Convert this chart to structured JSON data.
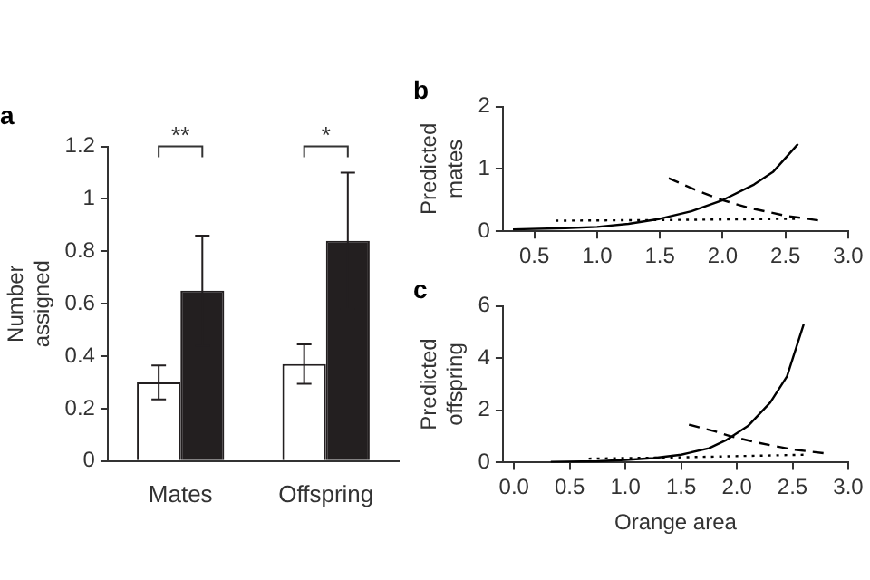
{
  "chart_data": [
    {
      "type": "bar",
      "title": "a",
      "ylabel": "Number assigned",
      "categories": [
        "Mates",
        "Offspring"
      ],
      "series": [
        {
          "color": "#ffffff",
          "values": [
            0.3,
            0.37
          ],
          "errors": [
            0.065,
            0.075
          ]
        },
        {
          "color": "#231f20",
          "values": [
            0.65,
            0.84
          ],
          "errors": [
            0.21,
            0.26
          ]
        }
      ],
      "ylim": [
        0,
        1.2
      ],
      "yticks": [
        0,
        0.2,
        0.4,
        0.6,
        0.8,
        1,
        1.2
      ],
      "grid": false,
      "legend": false,
      "annotations": [
        "**",
        "*"
      ]
    },
    {
      "type": "line",
      "title": "b",
      "ylabel": "Predicted mates",
      "marker": "none",
      "series": [
        {
          "color": "#000000",
          "line_style": "solid",
          "x": [
            0.33,
            0.75,
            1.0,
            1.25,
            1.5,
            1.75,
            2.0,
            2.25,
            2.4,
            2.6
          ],
          "values": [
            0.03,
            0.05,
            0.07,
            0.12,
            0.2,
            0.32,
            0.5,
            0.75,
            0.95,
            1.4
          ]
        },
        {
          "color": "#000000",
          "line_style": "dashed",
          "x": [
            1.57,
            1.8,
            2.0,
            2.2,
            2.5,
            2.78
          ],
          "values": [
            0.85,
            0.65,
            0.5,
            0.38,
            0.25,
            0.17
          ]
        },
        {
          "color": "#000000",
          "line_style": "dotted",
          "x": [
            0.67,
            1.5,
            2.6
          ],
          "values": [
            0.17,
            0.18,
            0.2
          ]
        }
      ],
      "xlim": [
        0.25,
        3.0
      ],
      "xticks": [
        0.5,
        {
          "value": 1,
          "label": "1.0"
        },
        1.5,
        {
          "value": 2,
          "label": "2.0"
        },
        2.5,
        {
          "value": 3,
          "label": "3.0"
        }
      ],
      "ylim": [
        0,
        2
      ],
      "yticks": [
        0,
        1,
        2
      ],
      "grid": false,
      "legend": false
    },
    {
      "type": "line",
      "title": "c",
      "ylabel": "Predicted offspring",
      "xlabel": "Orange area",
      "marker": "none",
      "series": [
        {
          "color": "#000000",
          "line_style": "solid",
          "x": [
            0.33,
            0.75,
            1.0,
            1.25,
            1.5,
            1.75,
            1.9,
            2.1,
            2.3,
            2.45,
            2.6
          ],
          "values": [
            0.02,
            0.05,
            0.1,
            0.17,
            0.3,
            0.55,
            0.85,
            1.4,
            2.3,
            3.3,
            5.3
          ]
        },
        {
          "color": "#000000",
          "line_style": "dashed",
          "x": [
            1.57,
            1.8,
            1.95,
            2.2,
            2.5,
            2.8
          ],
          "values": [
            1.45,
            1.2,
            1.0,
            0.75,
            0.5,
            0.35
          ]
        },
        {
          "color": "#000000",
          "line_style": "dotted",
          "x": [
            0.67,
            1.5,
            2.6
          ],
          "values": [
            0.15,
            0.2,
            0.3
          ]
        }
      ],
      "xlim": [
        -0.1,
        3.0
      ],
      "xticks": [
        {
          "value": 0,
          "label": "0.0"
        },
        0.5,
        {
          "value": 1,
          "label": "1.0"
        },
        1.5,
        {
          "value": 2,
          "label": "2.0"
        },
        2.5,
        {
          "value": 3,
          "label": "3.0"
        }
      ],
      "ylim": [
        0,
        6
      ],
      "yticks": [
        0,
        2,
        4,
        6
      ],
      "grid": false,
      "legend": false
    }
  ]
}
